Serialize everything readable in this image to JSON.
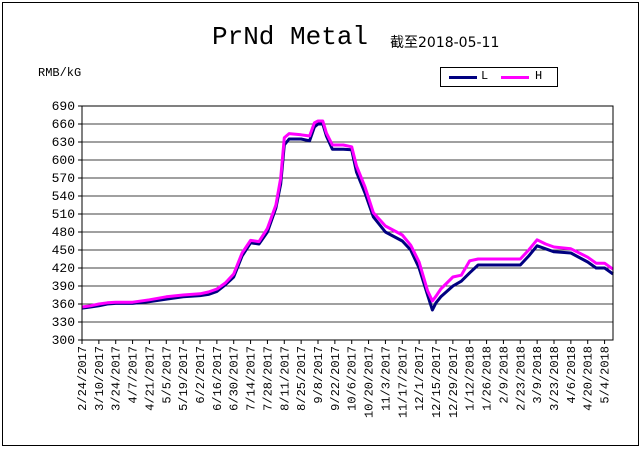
{
  "chart_data": {
    "type": "line",
    "title": "PrNd Metal",
    "subtitle": "截至2018-05-11",
    "ylabel": "RMB/kG",
    "xlabel": "",
    "ylim": [
      300,
      690
    ],
    "yticks": [
      300,
      330,
      360,
      390,
      420,
      450,
      480,
      510,
      540,
      570,
      600,
      630,
      660,
      690
    ],
    "grid": true,
    "legend_position": "top-right",
    "x_start": "2017-02-24",
    "x_end": "2018-05-11",
    "xtick_labels": [
      "2/24/2017",
      "3/10/2017",
      "3/24/2017",
      "4/7/2017",
      "4/21/2017",
      "5/5/2017",
      "5/19/2017",
      "6/2/2017",
      "6/16/2017",
      "6/30/2017",
      "7/14/2017",
      "7/28/2017",
      "8/11/2017",
      "8/25/2017",
      "9/8/2017",
      "9/22/2017",
      "10/6/2017",
      "10/20/2017",
      "11/3/2017",
      "11/17/2017",
      "12/1/2017",
      "12/15/2017",
      "12/29/2017",
      "1/12/2018",
      "1/26/2018",
      "2/9/2018",
      "2/23/2018",
      "3/9/2018",
      "3/23/2018",
      "4/6/2018",
      "4/20/2018",
      "5/4/2018"
    ],
    "series": [
      {
        "name": "L",
        "color": "#000080",
        "points": [
          [
            "2017-02-24",
            353
          ],
          [
            "2017-03-03",
            355
          ],
          [
            "2017-03-10",
            357
          ],
          [
            "2017-03-17",
            360
          ],
          [
            "2017-03-24",
            361
          ],
          [
            "2017-04-07",
            361
          ],
          [
            "2017-04-21",
            364
          ],
          [
            "2017-05-05",
            368
          ],
          [
            "2017-05-19",
            372
          ],
          [
            "2017-06-02",
            374
          ],
          [
            "2017-06-09",
            376
          ],
          [
            "2017-06-16",
            381
          ],
          [
            "2017-06-23",
            392
          ],
          [
            "2017-06-30",
            405
          ],
          [
            "2017-07-07",
            440
          ],
          [
            "2017-07-14",
            462
          ],
          [
            "2017-07-21",
            460
          ],
          [
            "2017-07-28",
            480
          ],
          [
            "2017-08-04",
            520
          ],
          [
            "2017-08-08",
            560
          ],
          [
            "2017-08-11",
            625
          ],
          [
            "2017-08-15",
            635
          ],
          [
            "2017-08-25",
            635
          ],
          [
            "2017-09-01",
            632
          ],
          [
            "2017-09-05",
            655
          ],
          [
            "2017-09-08",
            660
          ],
          [
            "2017-09-12",
            660
          ],
          [
            "2017-09-15",
            640
          ],
          [
            "2017-09-20",
            618
          ],
          [
            "2017-09-29",
            618
          ],
          [
            "2017-10-06",
            617
          ],
          [
            "2017-10-10",
            580
          ],
          [
            "2017-10-17",
            545
          ],
          [
            "2017-10-24",
            505
          ],
          [
            "2017-11-03",
            480
          ],
          [
            "2017-11-17",
            465
          ],
          [
            "2017-11-24",
            450
          ],
          [
            "2017-12-01",
            420
          ],
          [
            "2017-12-08",
            375
          ],
          [
            "2017-12-12",
            350
          ],
          [
            "2017-12-15",
            362
          ],
          [
            "2017-12-19",
            372
          ],
          [
            "2017-12-29",
            390
          ],
          [
            "2018-01-05",
            398
          ],
          [
            "2018-01-12",
            412
          ],
          [
            "2018-01-19",
            425
          ],
          [
            "2018-02-09",
            425
          ],
          [
            "2018-02-23",
            425
          ],
          [
            "2018-03-02",
            440
          ],
          [
            "2018-03-09",
            457
          ],
          [
            "2018-03-16",
            452
          ],
          [
            "2018-03-23",
            447
          ],
          [
            "2018-04-06",
            445
          ],
          [
            "2018-04-20",
            430
          ],
          [
            "2018-04-27",
            420
          ],
          [
            "2018-05-04",
            420
          ],
          [
            "2018-05-11",
            410
          ]
        ]
      },
      {
        "name": "H",
        "color": "#ff00ff",
        "points": [
          [
            "2017-02-24",
            355
          ],
          [
            "2017-03-03",
            357
          ],
          [
            "2017-03-10",
            360
          ],
          [
            "2017-03-17",
            362
          ],
          [
            "2017-03-24",
            363
          ],
          [
            "2017-04-07",
            363
          ],
          [
            "2017-04-21",
            367
          ],
          [
            "2017-05-05",
            372
          ],
          [
            "2017-05-19",
            375
          ],
          [
            "2017-06-02",
            377
          ],
          [
            "2017-06-09",
            380
          ],
          [
            "2017-06-16",
            385
          ],
          [
            "2017-06-23",
            395
          ],
          [
            "2017-06-30",
            410
          ],
          [
            "2017-07-07",
            445
          ],
          [
            "2017-07-14",
            466
          ],
          [
            "2017-07-21",
            464
          ],
          [
            "2017-07-28",
            486
          ],
          [
            "2017-08-04",
            525
          ],
          [
            "2017-08-08",
            570
          ],
          [
            "2017-08-11",
            637
          ],
          [
            "2017-08-15",
            644
          ],
          [
            "2017-08-25",
            642
          ],
          [
            "2017-09-01",
            640
          ],
          [
            "2017-09-05",
            662
          ],
          [
            "2017-09-08",
            665
          ],
          [
            "2017-09-12",
            665
          ],
          [
            "2017-09-15",
            645
          ],
          [
            "2017-09-20",
            625
          ],
          [
            "2017-09-29",
            625
          ],
          [
            "2017-10-06",
            622
          ],
          [
            "2017-10-10",
            590
          ],
          [
            "2017-10-17",
            555
          ],
          [
            "2017-10-24",
            512
          ],
          [
            "2017-11-03",
            490
          ],
          [
            "2017-11-17",
            475
          ],
          [
            "2017-11-24",
            458
          ],
          [
            "2017-12-01",
            430
          ],
          [
            "2017-12-08",
            382
          ],
          [
            "2017-12-12",
            365
          ],
          [
            "2017-12-15",
            373
          ],
          [
            "2017-12-19",
            385
          ],
          [
            "2017-12-29",
            405
          ],
          [
            "2018-01-05",
            408
          ],
          [
            "2018-01-12",
            432
          ],
          [
            "2018-01-19",
            435
          ],
          [
            "2018-02-09",
            435
          ],
          [
            "2018-02-23",
            435
          ],
          [
            "2018-03-02",
            450
          ],
          [
            "2018-03-09",
            467
          ],
          [
            "2018-03-16",
            460
          ],
          [
            "2018-03-23",
            455
          ],
          [
            "2018-04-06",
            452
          ],
          [
            "2018-04-20",
            438
          ],
          [
            "2018-04-27",
            428
          ],
          [
            "2018-05-04",
            428
          ],
          [
            "2018-05-11",
            418
          ]
        ]
      }
    ]
  }
}
